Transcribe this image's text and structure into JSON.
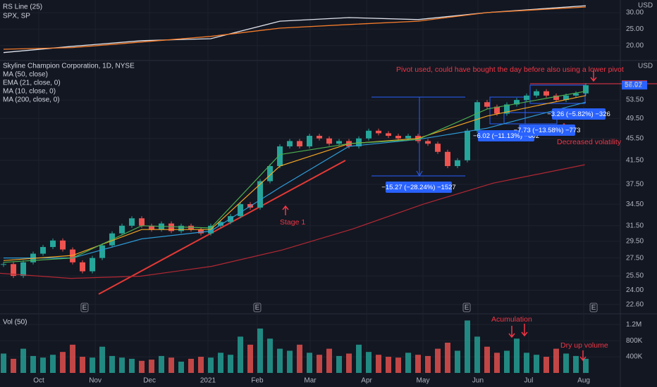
{
  "chart_data": [
    {
      "type": "line",
      "currency": "USD",
      "series": [
        {
          "name": "RS Line (25)",
          "color": "#e0e3eb",
          "x": [
            0,
            7,
            14,
            21,
            28,
            35,
            42,
            49,
            59
          ],
          "values": [
            17.9,
            19.8,
            21.5,
            22.1,
            27.4,
            28.5,
            27.9,
            30,
            32.1
          ]
        },
        {
          "name": "SPX, SP",
          "color": "#f57c2a",
          "x": [
            0,
            7,
            14,
            21,
            28,
            35,
            42,
            49,
            59
          ],
          "values": [
            18.9,
            19.4,
            21.1,
            22.8,
            25.3,
            26.4,
            27.4,
            30,
            31.7
          ]
        }
      ],
      "ylim": [
        15.7,
        33.4
      ],
      "yticks": [
        {
          "value": 30,
          "label": "30.00"
        },
        {
          "value": 25,
          "label": "25.00"
        },
        {
          "value": 20,
          "label": "20.00"
        }
      ]
    },
    {
      "type": "candlestick",
      "title": "Skyline Champion Corporation, 1D, NYSE",
      "currency": "USD",
      "log_scale": true,
      "up_color": "#26a69a",
      "down_color": "#ef5350",
      "xlim": [
        -0.36,
        62.5
      ],
      "x": [
        0,
        1,
        2,
        3,
        4,
        5,
        6,
        7,
        8,
        9,
        10,
        11,
        12,
        13,
        14,
        15,
        16,
        17,
        18,
        19,
        20,
        21,
        22,
        23,
        24,
        25,
        26,
        27,
        28,
        29,
        30,
        31,
        32,
        33,
        34,
        35,
        36,
        37,
        38,
        39,
        40,
        41,
        42,
        43,
        44,
        45,
        46,
        47,
        48,
        49,
        50,
        51,
        52,
        53,
        54,
        55,
        56,
        57,
        58,
        59
      ],
      "values": [
        26.8,
        25.5,
        27.0,
        28.0,
        28.8,
        29.6,
        28.5,
        27.0,
        26.0,
        27.5,
        29.0,
        30.5,
        31.5,
        32.5,
        31.5,
        31.0,
        31.8,
        30.8,
        31.5,
        31.0,
        30.5,
        31.5,
        32.0,
        32.8,
        34.5,
        34.0,
        38.0,
        40.5,
        44.0,
        45.0,
        44.0,
        46.0,
        45.5,
        44.5,
        45.0,
        44.0,
        45.5,
        47.0,
        46.5,
        46.0,
        45.5,
        46.0,
        45.0,
        44.5,
        43.0,
        40.5,
        41.5,
        47.0,
        53.0,
        52.0,
        50.5,
        52.5,
        53.5,
        54.5,
        55.5,
        54.5,
        53.5,
        54.5,
        55.0,
        56.92
      ],
      "overlays": [
        {
          "name": "MA (50, close)",
          "color": "#2e9bd6",
          "x": [
            0,
            7,
            14,
            21,
            28,
            35,
            42,
            49,
            59
          ],
          "values": [
            27.5,
            27.5,
            29.8,
            30.8,
            37,
            44,
            45.3,
            47.5,
            53
          ]
        },
        {
          "name": "EMA (21, close, 0)",
          "color": "#f5a623",
          "x": [
            0,
            7,
            14,
            21,
            28,
            35,
            42,
            49,
            59
          ],
          "values": [
            27.2,
            27.8,
            31,
            31,
            40.5,
            44.5,
            45.5,
            50,
            54.5
          ]
        },
        {
          "name": "MA (10, close, 0)",
          "color": "#4caf50",
          "x": [
            0,
            7,
            14,
            21,
            28,
            35,
            42,
            49,
            59
          ],
          "values": [
            27,
            27.5,
            31.5,
            31.2,
            42.5,
            44.5,
            45.3,
            51.5,
            55.5
          ]
        },
        {
          "name": "MA (200, close, 0)",
          "color": "#b22833",
          "x": [
            -0.36,
            6.8,
            13.9,
            21.1,
            28.2,
            35.4,
            42.5,
            49.6,
            58.9
          ],
          "values": [
            25.78,
            25.24,
            25.47,
            26.55,
            28.43,
            31.08,
            34.48,
            37.69,
            40.73
          ]
        }
      ],
      "ylim": [
        21.8,
        62.8
      ],
      "yticks": [
        {
          "value": 53.5,
          "label": "53.50"
        },
        {
          "value": 49.5,
          "label": "49.50"
        },
        {
          "value": 45.5,
          "label": "45.50"
        },
        {
          "value": 41.5,
          "label": "41.50"
        },
        {
          "value": 37.5,
          "label": "37.50"
        },
        {
          "value": 34.5,
          "label": "34.50"
        },
        {
          "value": 31.5,
          "label": "31.50"
        },
        {
          "value": 29.5,
          "label": "29.50"
        },
        {
          "value": 27.5,
          "label": "27.50"
        },
        {
          "value": 25.5,
          "label": "25.50"
        },
        {
          "value": 24,
          "label": "24.00"
        },
        {
          "value": 22.6,
          "label": "22.60"
        }
      ],
      "pivot_price": {
        "value": 57.07,
        "label": "57.07"
      },
      "last_price": {
        "value": 56.92,
        "label": "56.92"
      },
      "earnings": [
        {
          "x": 8.21,
          "label": "E"
        },
        {
          "x": 25.71,
          "label": "E"
        },
        {
          "x": 46.93,
          "label": "E"
        },
        {
          "x": 59.79,
          "label": "E"
        }
      ],
      "annotations": [
        "Pivot used, could have bought the day before also using a lower pivot",
        "Stage 1",
        "Decreased volatility",
        "Acumulation",
        "Dry up volume"
      ],
      "measurements": [
        "−15.27 (−28.24%) −1527",
        "−6.02 (−11.13%) −602",
        "−7.73 (−13.58%) −773",
        "−3.26 (−5.82%) −326"
      ]
    },
    {
      "type": "bar",
      "title": "Vol (50)",
      "values": [
        480000,
        350000,
        600000,
        420000,
        380000,
        450000,
        520000,
        700000,
        400000,
        380000,
        650000,
        420000,
        380000,
        350000,
        300000,
        330000,
        420000,
        380000,
        280000,
        350000,
        400000,
        380000,
        500000,
        450000,
        900000,
        700000,
        1100000,
        850000,
        600000,
        550000,
        700000,
        500000,
        450000,
        600000,
        420000,
        480000,
        700000,
        520000,
        450000,
        400000,
        380000,
        500000,
        450000,
        420000,
        600000,
        750000,
        550000,
        1300000,
        900000,
        650000,
        500000,
        550000,
        850000,
        500000,
        450000,
        400000,
        600000,
        480000,
        420000,
        350000
      ],
      "ylim": [
        0,
        1430000
      ],
      "yticks": [
        {
          "value": 1200000,
          "label": "1.2M"
        },
        {
          "value": 800000,
          "label": "800K"
        },
        {
          "value": 400000,
          "label": "400K"
        }
      ],
      "xticks": [
        {
          "value": 3.57,
          "label": "Oct"
        },
        {
          "value": 9.29,
          "label": "Nov"
        },
        {
          "value": 14.79,
          "label": "Dec"
        },
        {
          "value": 20.71,
          "label": "2021"
        },
        {
          "value": 25.71,
          "label": "Feb"
        },
        {
          "value": 31.07,
          "label": "Mar"
        },
        {
          "value": 36.79,
          "label": "Apr"
        },
        {
          "value": 42.5,
          "label": "May"
        },
        {
          "value": 48.07,
          "label": "Jun"
        },
        {
          "value": 53.21,
          "label": "Jul"
        },
        {
          "value": 58.79,
          "label": "Aug"
        }
      ]
    }
  ]
}
